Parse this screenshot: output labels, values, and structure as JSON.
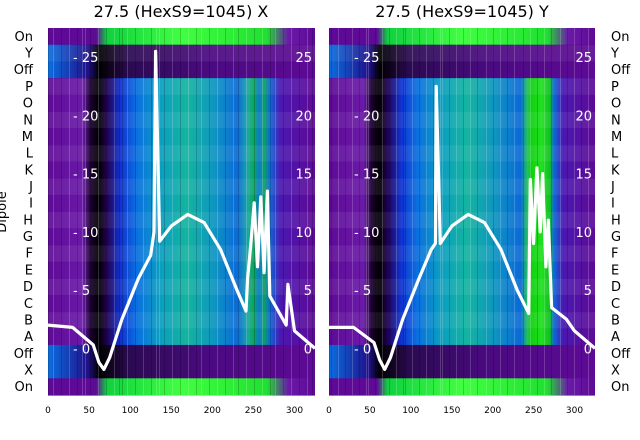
{
  "chart_data": {
    "type": "heatmap",
    "ylabel": "Dipole",
    "row_labels": [
      "On",
      "Y",
      "Off",
      "P",
      "O",
      "N",
      "M",
      "L",
      "K",
      "J",
      "I",
      "H",
      "G",
      "F",
      "E",
      "D",
      "C",
      "B",
      "A",
      "Off",
      "X",
      "On"
    ],
    "xlim": [
      0,
      325
    ],
    "xticks": [
      0,
      50,
      100,
      150,
      200,
      250,
      300
    ],
    "overlay_ylim": [
      -4,
      27.5
    ],
    "overlay_yticks": [
      0,
      5,
      10,
      15,
      20,
      25
    ],
    "overlay_ytick_labels": [
      "0",
      "5",
      "10",
      "15",
      "20",
      "25"
    ],
    "overlay_ytick_text": [
      "- 0",
      "- 5",
      "- 10",
      "- 15",
      "- 20",
      "- 25"
    ],
    "panels": [
      {
        "title": "27.5 (HexS9=1045) X",
        "overlay": {
          "x": [
            0,
            30,
            55,
            62,
            68,
            75,
            90,
            110,
            125,
            129,
            131,
            136,
            150,
            170,
            190,
            210,
            230,
            241,
            243,
            247,
            251,
            255,
            259,
            263,
            267,
            270,
            290,
            292,
            300,
            325
          ],
          "y": [
            2.0,
            1.8,
            0.3,
            -1.2,
            -1.8,
            -0.8,
            2.5,
            6.0,
            8.0,
            10.0,
            25.5,
            9.2,
            10.5,
            11.5,
            10.8,
            8.5,
            5.0,
            3.2,
            6.0,
            9.0,
            12.5,
            7.0,
            13.0,
            6.5,
            13.5,
            4.5,
            2.0,
            5.5,
            1.5,
            0.0
          ]
        }
      },
      {
        "title": "27.5 (HexS9=1045) Y",
        "overlay": {
          "x": [
            0,
            30,
            55,
            62,
            68,
            75,
            90,
            110,
            125,
            130,
            131,
            136,
            150,
            170,
            190,
            210,
            230,
            244,
            246,
            250,
            254,
            258,
            261,
            265,
            268,
            272,
            290,
            300,
            325
          ],
          "y": [
            1.8,
            1.8,
            0.5,
            -1.0,
            -1.8,
            -0.8,
            2.5,
            6.0,
            8.5,
            9.0,
            22.5,
            9.0,
            10.5,
            11.5,
            10.8,
            8.5,
            5.0,
            3.0,
            14.5,
            9.0,
            15.5,
            10.0,
            15.0,
            7.0,
            11.0,
            3.5,
            2.5,
            1.5,
            0.0
          ]
        }
      }
    ]
  }
}
